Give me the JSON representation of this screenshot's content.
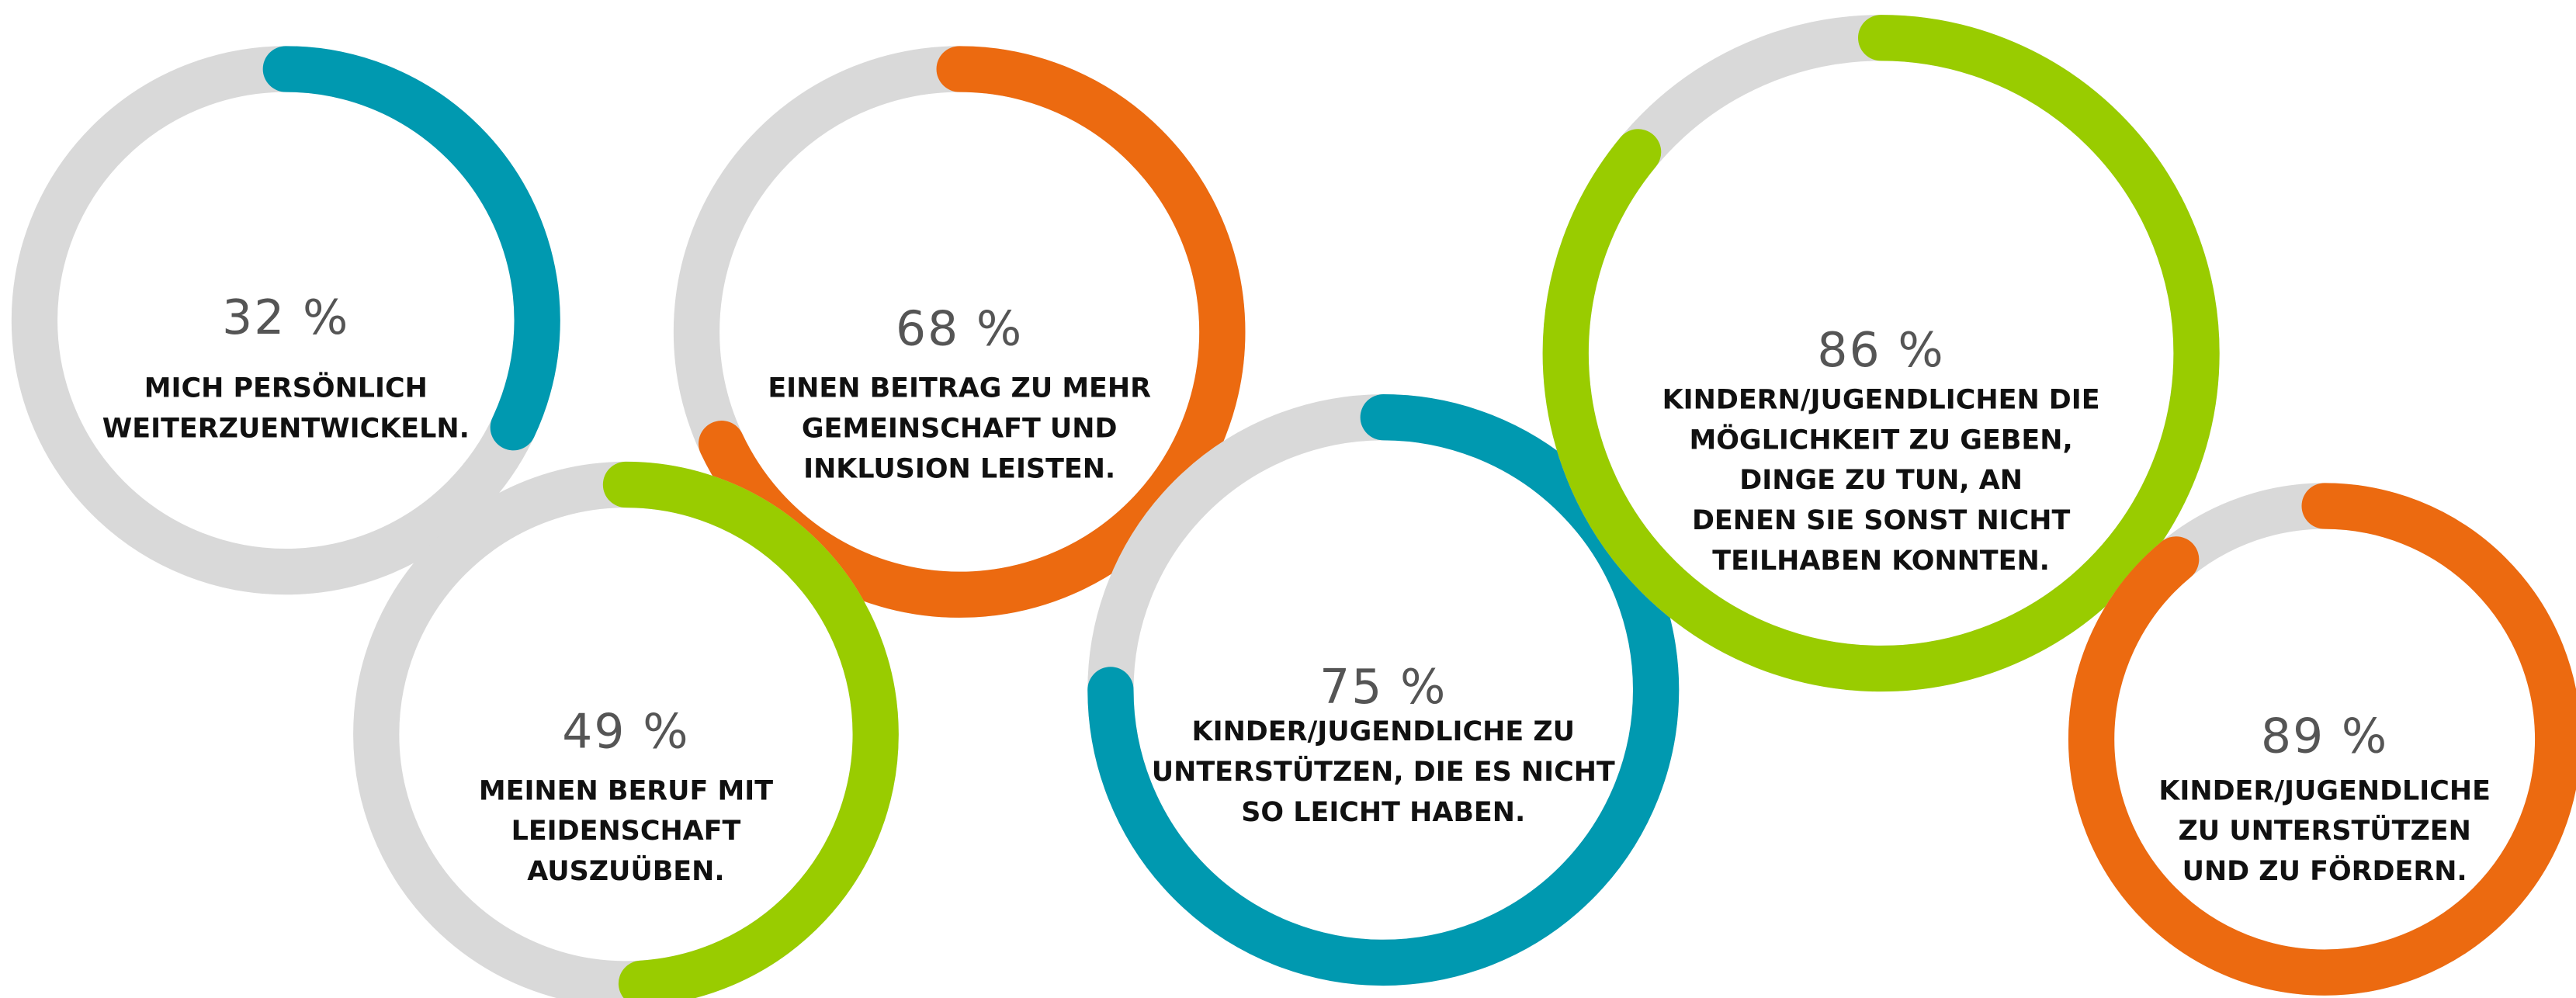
{
  "chart_data": {
    "type": "donut-gauges",
    "values": [
      32,
      68,
      49,
      75,
      86,
      89
    ],
    "value_labels": [
      "32 %",
      "68 %",
      "49 %",
      "75 %",
      "86 %",
      "89 %"
    ],
    "categories": [
      [
        "MICH PERSÖNLICH",
        "WEITERZUENTWICKELN."
      ],
      [
        "EINEN BEITRAG ZU MEHR",
        "GEMEINSCHAFT UND",
        "INKLUSION LEISTEN."
      ],
      [
        "MEINEN BERUF MIT",
        "LEIDENSCHAFT",
        "AUSZUÜBEN."
      ],
      [
        "KINDER/JUGENDLICHE ZU",
        "UNTERSTÜTZEN, DIE ES NICHT",
        "SO LEICHT HABEN."
      ],
      [
        "KINDERN/JUGENDLICHEN DIE",
        "MÖGLICHKEIT ZU GEBEN,",
        "DINGE ZU TUN, AN",
        "DENEN SIE SONST NICHT",
        "TEILHABEN KONNTEN."
      ],
      [
        "KINDER/JUGENDLICHE",
        "ZU UNTERSTÜTZEN",
        "UND ZU FÖRDERN."
      ]
    ],
    "colors": [
      "#0099b0",
      "#ec6a10",
      "#99cc00",
      "#0099b0",
      "#99cc00",
      "#ec6a10"
    ],
    "track_color": "#d9d9d9",
    "max": 100
  }
}
